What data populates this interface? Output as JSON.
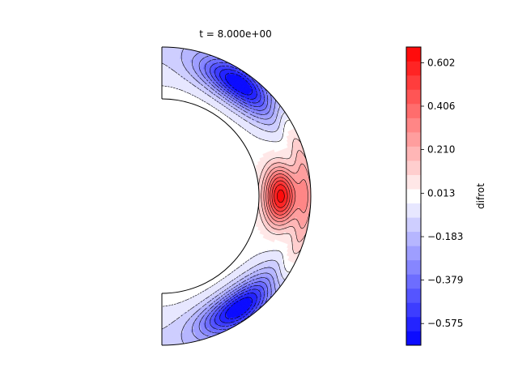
{
  "figure": {
    "title": "t = 8.000e+00"
  },
  "chart_data": {
    "type": "heatmap",
    "subtype": "filled contour on meridional half-annulus",
    "title": "t = 8.000e+00",
    "field": "difrot",
    "geometry": "half-annulus, inner radius ratio 0.65",
    "colormap": "bwr",
    "vmin": -0.673,
    "vmax": 0.673,
    "levels": 21,
    "colorbar": {
      "label": "difrot",
      "ticks": [
        0.602,
        0.406,
        0.21,
        0.013,
        -0.183,
        -0.379,
        -0.575
      ],
      "tick_labels": [
        "0.602",
        "0.406",
        "0.210",
        "0.013",
        "−0.183",
        "−0.379",
        "−0.575"
      ]
    },
    "features": [
      {
        "name": "equatorial positive peak",
        "value": 0.64,
        "colat_deg": 90
      },
      {
        "name": "northern negative lobe",
        "value": -0.62,
        "colat_deg": 35
      },
      {
        "name": "southern negative lobe",
        "value": -0.62,
        "colat_deg": 145
      }
    ]
  }
}
